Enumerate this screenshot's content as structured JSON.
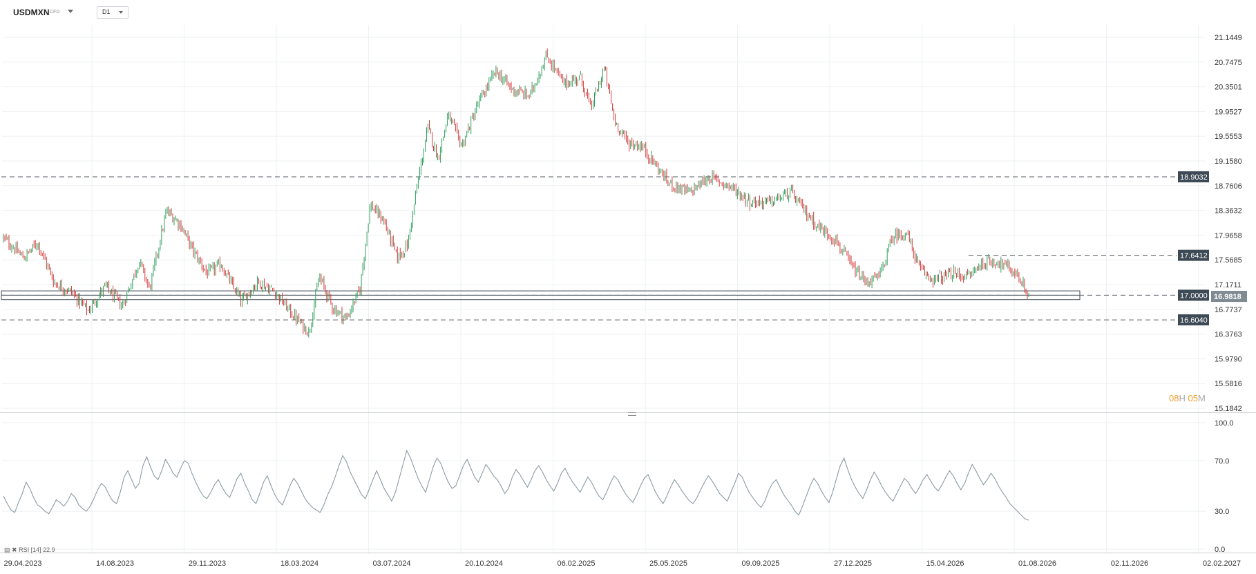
{
  "toolbar": {
    "symbol": "USDMXN",
    "symbol_type": "CFD",
    "timeframe": "D1"
  },
  "countdown": {
    "hours": "08",
    "h_unit": "H",
    "minutes": "05",
    "m_unit": "M"
  },
  "rsi_indicator": {
    "label": "RSI [14] 22.9"
  },
  "colors": {
    "bull": "#2e9e5b",
    "bear": "#d23a3a",
    "grid": "#eef0f2",
    "level_line": "#555e66",
    "tag_bg": "#3d4a55",
    "price_tag_bg": "#7f8a93",
    "rsi_line": "#8b9aa3",
    "countdown": "#f0a030"
  },
  "chart_data": [
    {
      "type": "candlestick",
      "symbol": "USDMXN",
      "y_ticks": [
        "21.1449",
        "20.7475",
        "20.3501",
        "19.9527",
        "19.5553",
        "19.1580",
        "18.7606",
        "18.3632",
        "17.9658",
        "17.5685",
        "17.1711",
        "16.7737",
        "16.3763",
        "15.9790",
        "15.5816",
        "15.1842"
      ],
      "ylim": [
        15.1842,
        21.1449
      ],
      "x_ticks": [
        "29.04.2023",
        "14.08.2023",
        "29.11.2023",
        "18.03.2024",
        "03.07.2024",
        "20.10.2024",
        "06.02.2025",
        "25.05.2025",
        "09.09.2025",
        "27.12.2025",
        "15.04.2026",
        "01.08.2026",
        "02.11.2026",
        "02.02.2027"
      ],
      "horizontal_levels": [
        {
          "value": 18.9032,
          "label": "18.9032",
          "style": "dashed"
        },
        {
          "value": 17.6412,
          "label": "17.6412",
          "style": "dashed"
        },
        {
          "value": 17.0,
          "label": "17.0000",
          "style": "dashed"
        },
        {
          "value": 16.604,
          "label": "16.6040",
          "style": "dashed"
        }
      ],
      "current_price": {
        "value": 16.9818,
        "label": "16.9818"
      },
      "zone": {
        "from": 16.93,
        "to": 17.07
      },
      "price_path": [
        [
          0,
          17.92
        ],
        [
          6,
          17.6
        ],
        [
          10,
          17.85
        ],
        [
          15,
          17.2
        ],
        [
          20,
          17.05
        ],
        [
          25,
          16.75
        ],
        [
          30,
          17.15
        ],
        [
          35,
          16.82
        ],
        [
          40,
          17.55
        ],
        [
          43,
          17.1
        ],
        [
          48,
          18.35
        ],
        [
          52,
          18.15
        ],
        [
          56,
          17.7
        ],
        [
          60,
          17.35
        ],
        [
          64,
          17.5
        ],
        [
          70,
          16.9
        ],
        [
          75,
          17.22
        ],
        [
          80,
          17.05
        ],
        [
          85,
          16.7
        ],
        [
          90,
          16.4
        ],
        [
          93,
          17.3
        ],
        [
          97,
          16.8
        ],
        [
          101,
          16.62
        ],
        [
          105,
          17.1
        ],
        [
          108,
          18.45
        ],
        [
          112,
          18.2
        ],
        [
          116,
          17.6
        ],
        [
          119,
          17.8
        ],
        [
          122,
          18.8
        ],
        [
          125,
          19.7
        ],
        [
          128,
          19.2
        ],
        [
          131,
          19.9
        ],
        [
          135,
          19.4
        ],
        [
          140,
          20.1
        ],
        [
          145,
          20.6
        ],
        [
          150,
          20.3
        ],
        [
          155,
          20.2
        ],
        [
          160,
          20.85
        ],
        [
          165,
          20.4
        ],
        [
          170,
          20.5
        ],
        [
          173,
          20.0
        ],
        [
          177,
          20.65
        ],
        [
          180,
          19.8
        ],
        [
          184,
          19.45
        ],
        [
          188,
          19.4
        ],
        [
          192,
          19.1
        ],
        [
          196,
          18.8
        ],
        [
          202,
          18.65
        ],
        [
          208,
          18.9
        ],
        [
          214,
          18.75
        ],
        [
          220,
          18.5
        ],
        [
          226,
          18.5
        ],
        [
          232,
          18.65
        ],
        [
          236,
          18.35
        ],
        [
          240,
          18.1
        ],
        [
          245,
          17.9
        ],
        [
          250,
          17.45
        ],
        [
          254,
          17.2
        ],
        [
          258,
          17.3
        ],
        [
          262,
          17.95
        ],
        [
          266,
          18.0
        ],
        [
          270,
          17.4
        ],
        [
          274,
          17.25
        ],
        [
          280,
          17.35
        ],
        [
          284,
          17.3
        ],
        [
          288,
          17.5
        ],
        [
          292,
          17.55
        ],
        [
          296,
          17.45
        ],
        [
          299,
          17.3
        ],
        [
          302,
          16.98
        ]
      ]
    },
    {
      "type": "line",
      "name": "RSI [14]",
      "y_ticks": [
        "100.0",
        "70.0",
        "30.0",
        "0.0"
      ],
      "ylim": [
        0,
        100
      ],
      "last_value": 22.9,
      "values": [
        42,
        36,
        31,
        29,
        37,
        44,
        53,
        48,
        41,
        35,
        33,
        30,
        28,
        33,
        39,
        37,
        34,
        38,
        44,
        41,
        35,
        32,
        30,
        34,
        40,
        47,
        52,
        49,
        43,
        38,
        36,
        45,
        57,
        62,
        55,
        48,
        52,
        66,
        73,
        65,
        58,
        55,
        62,
        71,
        66,
        60,
        57,
        64,
        70,
        68,
        60,
        53,
        47,
        42,
        40,
        45,
        51,
        55,
        49,
        44,
        41,
        48,
        56,
        60,
        52,
        46,
        39,
        36,
        44,
        53,
        58,
        50,
        43,
        38,
        35,
        42,
        50,
        56,
        52,
        46,
        40,
        36,
        33,
        31,
        29,
        35,
        43,
        49,
        57,
        66,
        74,
        69,
        61,
        55,
        49,
        43,
        40,
        47,
        55,
        62,
        55,
        48,
        43,
        38,
        45,
        56,
        67,
        78,
        72,
        64,
        56,
        50,
        45,
        55,
        65,
        72,
        68,
        60,
        53,
        48,
        50,
        58,
        66,
        71,
        64,
        57,
        53,
        60,
        67,
        63,
        58,
        55,
        50,
        44,
        48,
        57,
        63,
        59,
        54,
        49,
        55,
        62,
        66,
        61,
        55,
        50,
        46,
        52,
        60,
        64,
        58,
        53,
        49,
        45,
        51,
        57,
        53,
        47,
        42,
        39,
        45,
        52,
        58,
        55,
        49,
        44,
        40,
        37,
        43,
        50,
        56,
        59,
        52,
        45,
        40,
        36,
        42,
        49,
        55,
        51,
        46,
        42,
        38,
        36,
        41,
        47,
        53,
        58,
        54,
        49,
        44,
        41,
        38,
        45,
        52,
        60,
        57,
        50,
        44,
        40,
        36,
        33,
        38,
        46,
        52,
        55,
        49,
        43,
        39,
        35,
        30,
        27,
        34,
        42,
        50,
        56,
        52,
        46,
        41,
        37,
        45,
        56,
        66,
        72,
        63,
        55,
        49,
        44,
        40,
        47,
        55,
        61,
        56,
        50,
        45,
        41,
        38,
        44,
        50,
        56,
        53,
        48,
        44,
        49,
        55,
        59,
        54,
        49,
        46,
        51,
        57,
        62,
        58,
        52,
        47,
        52,
        60,
        67,
        62,
        56,
        51,
        55,
        60,
        56,
        50,
        45,
        41,
        36,
        33,
        30,
        27,
        24,
        22.9
      ]
    }
  ]
}
